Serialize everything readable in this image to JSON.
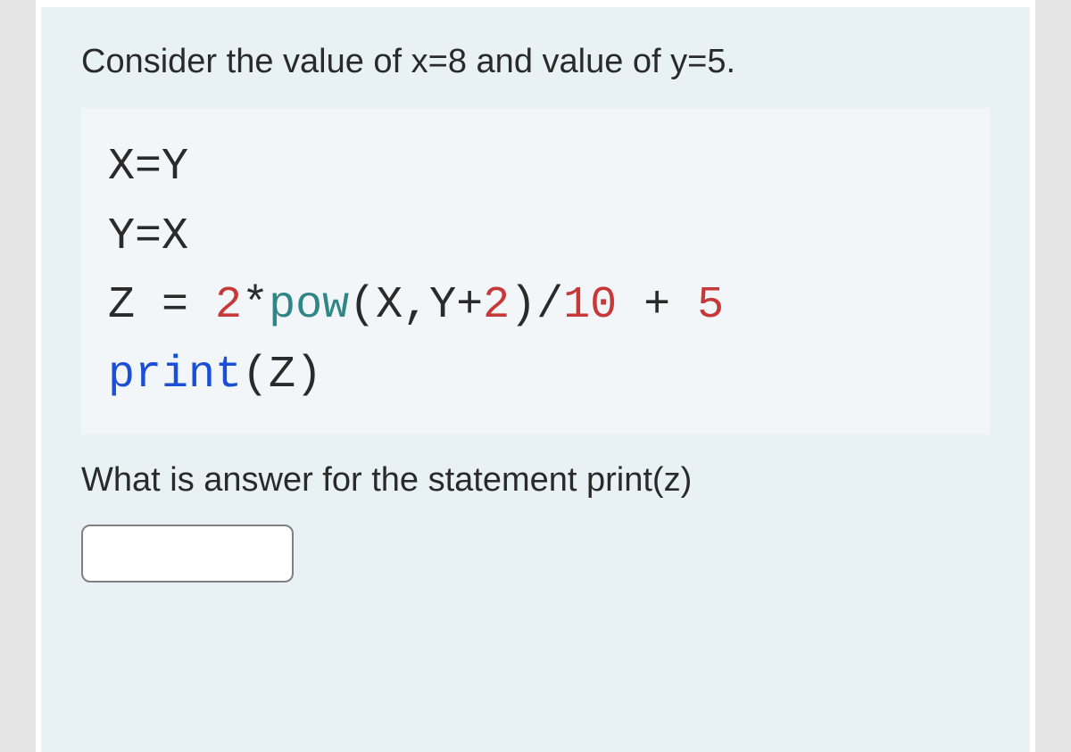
{
  "colors": {
    "page_background": "#e4e4e4",
    "card_background": "#e8f2f5",
    "code_background": "#f2f6f8",
    "text_primary": "#2a2a2a",
    "syntax_keyword": "#1a4fd6",
    "syntax_number": "#c73838",
    "syntax_builtin": "#2e8686",
    "input_border": "#808080",
    "input_background": "#ffffff"
  },
  "typography": {
    "body_fontsize": 38,
    "code_fontsize": 50,
    "code_font": "Courier New",
    "body_font": "Arial"
  },
  "question": {
    "prompt": "Consider the value of x=8 and value of y=5.",
    "code_lines": [
      {
        "parts": [
          {
            "text": "X=Y",
            "cls": ""
          }
        ]
      },
      {
        "parts": [
          {
            "text": "Y=X",
            "cls": ""
          }
        ]
      },
      {
        "parts": [
          {
            "text": "Z = ",
            "cls": ""
          },
          {
            "text": "2",
            "cls": "syntax-red-num"
          },
          {
            "text": "*",
            "cls": ""
          },
          {
            "text": "pow",
            "cls": "syntax-teal"
          },
          {
            "text": "(X,Y+",
            "cls": ""
          },
          {
            "text": "2",
            "cls": "syntax-red-num"
          },
          {
            "text": ")/",
            "cls": ""
          },
          {
            "text": "10",
            "cls": "syntax-red-num"
          },
          {
            "text": " + ",
            "cls": ""
          },
          {
            "text": "5",
            "cls": "syntax-red-num"
          }
        ]
      },
      {
        "parts": [
          {
            "text": "print",
            "cls": "syntax-blue"
          },
          {
            "text": "(Z)",
            "cls": ""
          }
        ]
      }
    ],
    "followup": "What is answer for the statement print(z)",
    "answer_value": ""
  }
}
